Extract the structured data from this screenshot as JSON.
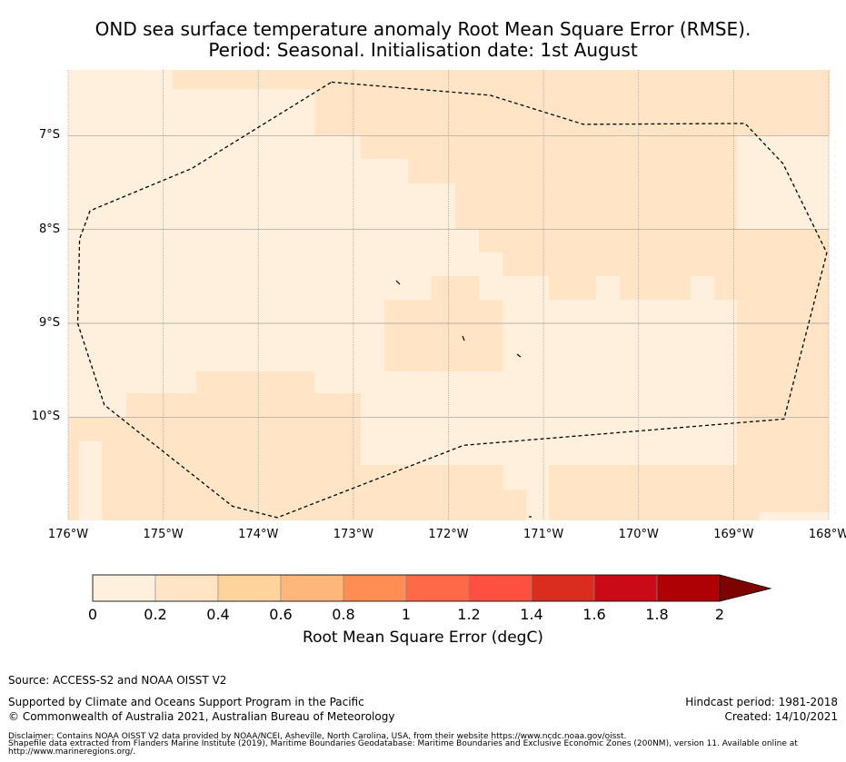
{
  "title_line1": "OND sea surface temperature anomaly Root Mean Square Error (RMSE).",
  "title_line2": "Period: Seasonal. Initialisation date: 1st August",
  "map": {
    "lon_range": [
      -176,
      -168
    ],
    "lat_range": [
      -11.1,
      -6.3
    ],
    "lon_ticks": [
      {
        "value": -176,
        "label": "176°W"
      },
      {
        "value": -175,
        "label": "175°W"
      },
      {
        "value": -174,
        "label": "174°W"
      },
      {
        "value": -173,
        "label": "173°W"
      },
      {
        "value": -172,
        "label": "172°W"
      },
      {
        "value": -171,
        "label": "171°W"
      },
      {
        "value": -170,
        "label": "170°W"
      },
      {
        "value": -169,
        "label": "169°W"
      },
      {
        "value": -168,
        "label": "168°W"
      }
    ],
    "lat_ticks": [
      {
        "value": -7,
        "label": "7°S"
      },
      {
        "value": -8,
        "label": "8°S"
      },
      {
        "value": -9,
        "label": "9°S"
      },
      {
        "value": -10,
        "label": "10°S"
      }
    ],
    "cell_colors": {
      "low": "#fff0de",
      "mid": "#ffe5c6"
    },
    "eez_boundary": [
      [
        -173.23,
        -6.43
      ],
      [
        -171.56,
        -6.57
      ],
      [
        -170.58,
        -6.88
      ],
      [
        -168.88,
        -6.87
      ],
      [
        -168.48,
        -7.3
      ],
      [
        -168.02,
        -8.25
      ],
      [
        -168.47,
        -10.02
      ],
      [
        -171.84,
        -10.3
      ],
      [
        -173.8,
        -11.07
      ],
      [
        -174.27,
        -10.95
      ],
      [
        -175.62,
        -9.87
      ],
      [
        -175.9,
        -9.0
      ],
      [
        -175.88,
        -8.1
      ],
      [
        -175.77,
        -7.8
      ],
      [
        -174.7,
        -7.35
      ],
      [
        -173.23,
        -6.43
      ]
    ]
  },
  "colorbar": {
    "ticks": [
      "0",
      "0.2",
      "0.4",
      "0.6",
      "0.8",
      "1",
      "1.2",
      "1.4",
      "1.6",
      "1.8",
      "2"
    ],
    "colors": [
      "#fff0de",
      "#ffe5c6",
      "#ffd49c",
      "#feb67a",
      "#fe8e54",
      "#fe6a48",
      "#fe5040",
      "#da2d20",
      "#ca0a16",
      "#ae0106"
    ],
    "extend_color": "#7e0200",
    "label": "Root Mean Square Error (degC)"
  },
  "footer": {
    "source": "Source: ACCESS-S2 and NOAA OISST V2",
    "support": "Supported by Climate and Oceans Support Program in the Pacific",
    "copyright": "© Commonwealth of Australia 2021, Australian Bureau of Meteorology",
    "hindcast": "Hindcast period: 1981-2018",
    "created": "Created: 14/10/2021",
    "disclaimer1": "Disclaimer: Contains NOAA OISST V2 data provided by NOAA/NCEI, Asheville, North Carolina, USA, from their website https://www.ncdc.noaa.gov/oisst.",
    "disclaimer2": "Shapefile data extracted from Flanders Marine Institute (2019), Maritime Boundaries Geodatabase: Maritime Boundaries and Exclusive Economic Zones (200NM), version 11. Available online at http://www.marineregions.org/."
  }
}
